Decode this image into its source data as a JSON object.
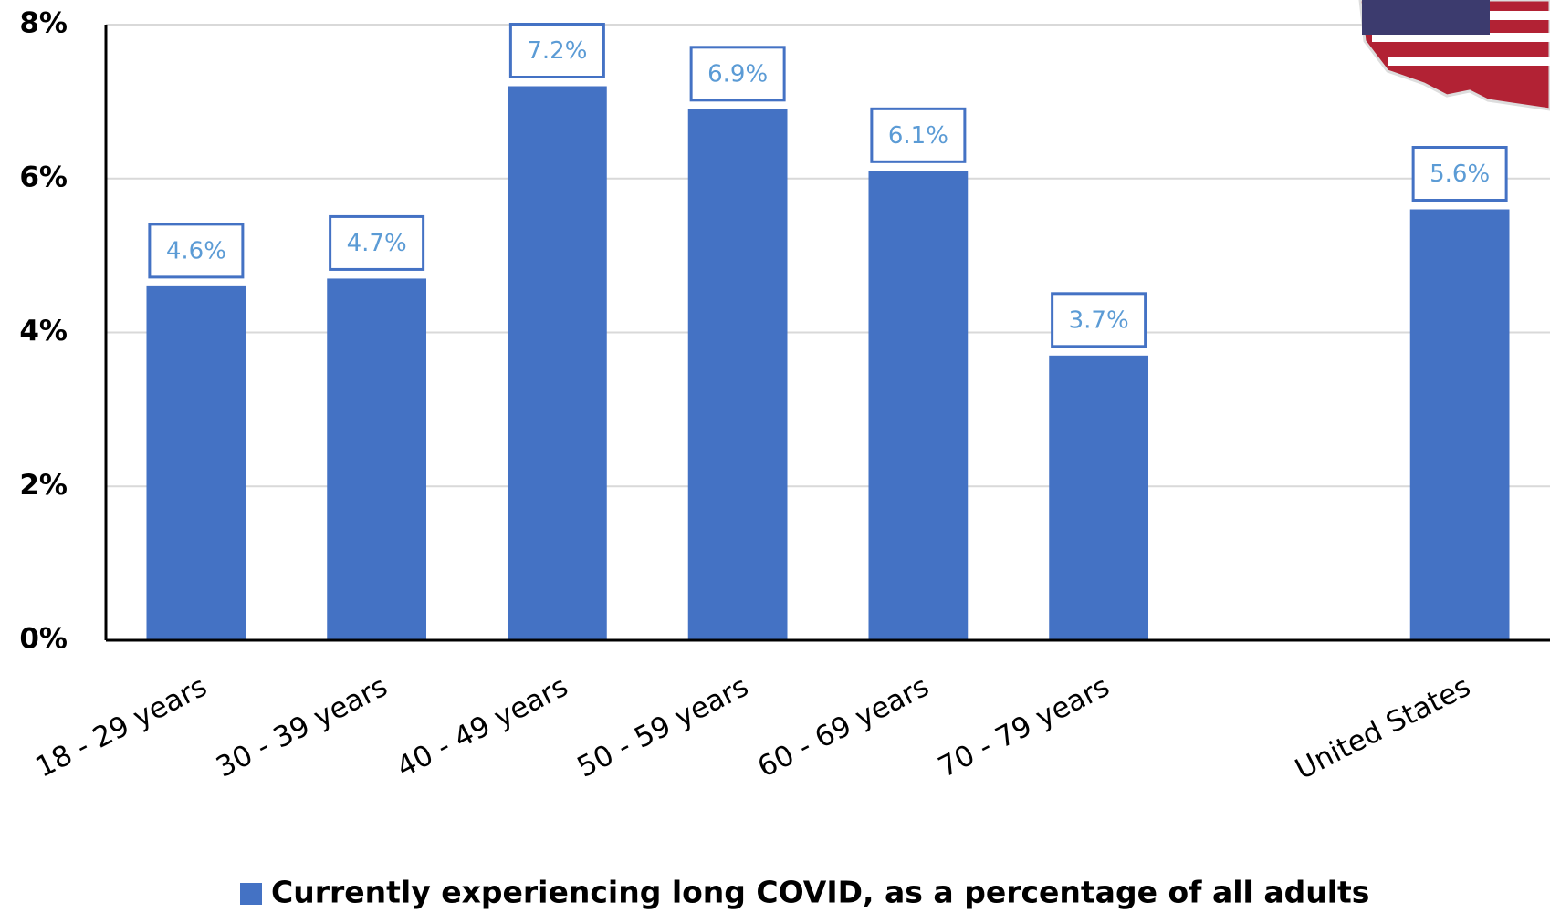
{
  "chart_data": {
    "type": "bar",
    "categories": [
      "18 - 29 years",
      "30 - 39 years",
      "40 - 49 years",
      "50 - 59 years",
      "60 - 69 years",
      "70 - 79 years",
      null,
      "United States"
    ],
    "series": [
      {
        "name": "Currently experiencing long COVID, as a percentage of all adults",
        "color": "#4472c4",
        "values": [
          4.6,
          4.7,
          7.2,
          6.9,
          6.1,
          3.7,
          null,
          5.6
        ],
        "value_labels": [
          "4.6%",
          "4.7%",
          "7.2%",
          "6.9%",
          "6.1%",
          "3.7%",
          null,
          "5.6%"
        ]
      }
    ],
    "ylim": [
      0,
      8
    ],
    "yticks": [
      {
        "value": 0,
        "label": "0%"
      },
      {
        "value": 2,
        "label": "2%"
      },
      {
        "value": 4,
        "label": "4%"
      },
      {
        "value": 6,
        "label": "6%"
      },
      {
        "value": 8,
        "label": "8%"
      }
    ],
    "grid": true,
    "legend": "bottom"
  }
}
